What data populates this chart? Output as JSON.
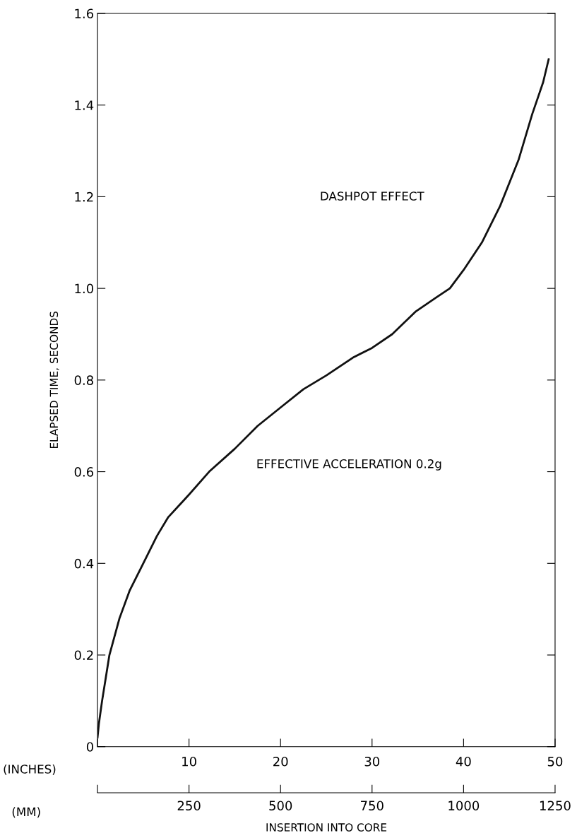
{
  "chart_data": {
    "type": "line",
    "ylabel": "ELAPSED TIME, SECONDS",
    "xlabel": "(INCHES)",
    "x2label": "(MM)",
    "annotations": [
      "DASHPOT EFFECT",
      "EFFECTIVE ACCELERATION 0.2g",
      "INSERTION INTO CORE"
    ],
    "series": [
      {
        "color": "#111111",
        "x": [
          0,
          0.15,
          0.5,
          0.9,
          1.3,
          2.4,
          3.5,
          5.0,
          6.5,
          7.7,
          10,
          12.2,
          15,
          17.5,
          20,
          22.5,
          25,
          28,
          30,
          32.2,
          34.8,
          37,
          38.5,
          40,
          42,
          44,
          46,
          47.5,
          48.7,
          49.3
        ],
        "values": [
          0.02,
          0.05,
          0.1,
          0.15,
          0.2,
          0.28,
          0.34,
          0.4,
          0.46,
          0.5,
          0.55,
          0.6,
          0.65,
          0.7,
          0.74,
          0.78,
          0.81,
          0.85,
          0.87,
          0.9,
          0.95,
          0.98,
          1.0,
          1.04,
          1.1,
          1.18,
          1.28,
          1.38,
          1.45,
          1.5
        ]
      }
    ],
    "xlim": [
      0,
      50
    ],
    "xticks": [
      {
        "value": 0,
        "label": null
      },
      10,
      20,
      30,
      40,
      50
    ],
    "x2lim": [
      0,
      1250
    ],
    "x2ticks": [
      {
        "value": 0,
        "label": null
      },
      250,
      500,
      750,
      1000,
      1250
    ],
    "ylim": [
      0,
      1.6
    ],
    "yticks": [
      {
        "value": 0,
        "label": "0"
      },
      0.2,
      0.4,
      0.6,
      0.8,
      {
        "value": 1,
        "label": "1.0"
      },
      1.2,
      1.4,
      1.6
    ],
    "grid": false,
    "legend": false,
    "marker": "none",
    "line_style": "solid"
  }
}
